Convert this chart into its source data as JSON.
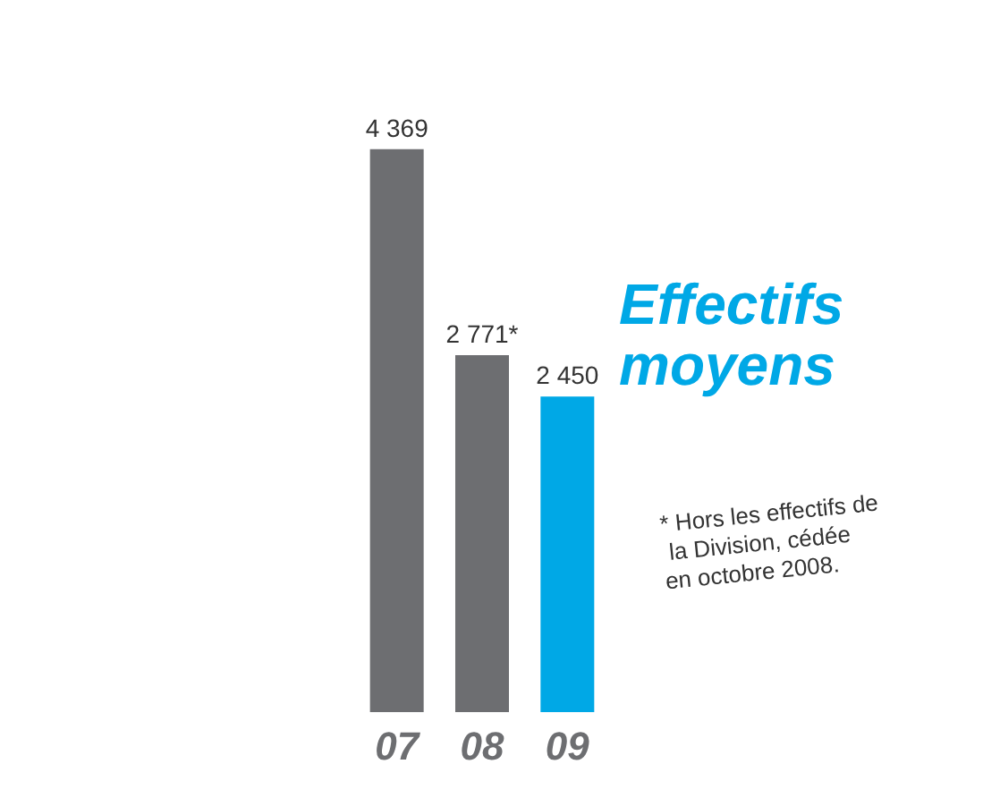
{
  "chart_data": {
    "type": "bar",
    "title": "Effectifs moyens",
    "categories": [
      "07",
      "08",
      "09"
    ],
    "values": [
      4369,
      2771,
      2450
    ],
    "colors": [
      "#6d6e71",
      "#6d6e71",
      "#00a8e6"
    ],
    "value_labels": [
      "4 369",
      "2 771*",
      "2 450"
    ],
    "tick_labels": "x",
    "annotations": [
      "* Hors les effectifs de la Division, cédée en octobre 2008."
    ]
  }
}
